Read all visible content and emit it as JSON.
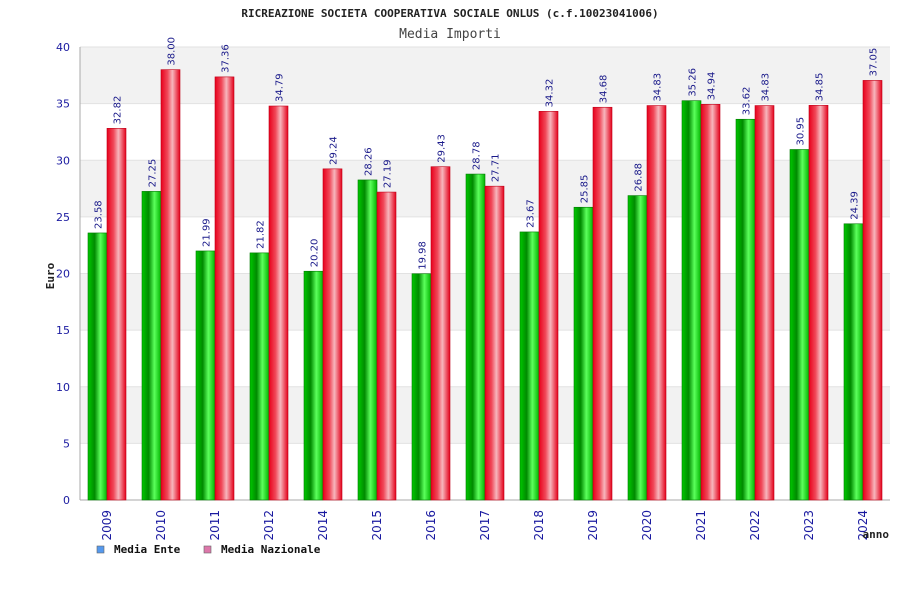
{
  "title": "RICREAZIONE SOCIETA COOPERATIVA SOCIALE ONLUS (c.f.10023041006)",
  "subtitle": "Media Importi",
  "chart_data": {
    "type": "bar",
    "categories": [
      "2009",
      "2010",
      "2011",
      "2012",
      "2014",
      "2015",
      "2016",
      "2017",
      "2018",
      "2019",
      "2020",
      "2021",
      "2022",
      "2023",
      "2024"
    ],
    "series": [
      {
        "name": "Media Ente",
        "color": "#00b000",
        "legend_color": "#5599ee",
        "values": [
          23.58,
          27.25,
          21.99,
          21.82,
          20.2,
          28.26,
          19.98,
          28.78,
          23.67,
          25.85,
          26.88,
          35.26,
          33.62,
          30.95,
          24.39
        ],
        "labels": [
          "23.58",
          "27.25",
          "21.99",
          "21.82",
          "20.20",
          "28.26",
          "19.98",
          "28.78",
          "23.67",
          "25.85",
          "26.88",
          "35.26",
          "33.62",
          "30.95",
          "24.39"
        ]
      },
      {
        "name": "Media Nazionale",
        "color": "#e8001c",
        "legend_color": "#dd77aa",
        "values": [
          32.82,
          38.0,
          37.36,
          34.79,
          29.24,
          27.19,
          29.43,
          27.71,
          34.32,
          34.68,
          34.83,
          34.94,
          34.83,
          34.85,
          37.05
        ],
        "labels": [
          "32.82",
          "38.00",
          "37.36",
          "34.79",
          "29.24",
          "27.19",
          "29.43",
          "27.71",
          "34.32",
          "34.68",
          "34.83",
          "34.94",
          "34.83",
          "34.85",
          "37.05"
        ]
      }
    ],
    "ylabel": "Euro",
    "xlabel": "anno",
    "ylim": [
      0,
      40
    ],
    "yticks": [
      "0",
      "5",
      "10",
      "15",
      "20",
      "25",
      "30",
      "35",
      "40"
    ],
    "grid": true,
    "legend_position": "bottom-left"
  }
}
